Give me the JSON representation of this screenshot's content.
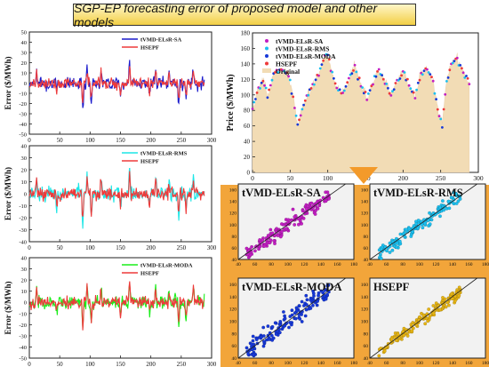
{
  "title": "SGP-EP forecasting error of proposed model and other models",
  "colors": {
    "sa": "#1a1acc",
    "rms": "#1de6e6",
    "moda": "#1aee1a",
    "hsepf": "#ee3a3a",
    "original": "#f2dcb5",
    "sc_sa": "#c21ec2",
    "sc_rms": "#1cc0f0",
    "sc_moda": "#1638d8",
    "sc_hsepf": "#e6b414"
  },
  "error_panels": [
    {
      "ylabel": "Error ($/MWh)",
      "ylim": [
        -50,
        50
      ],
      "yticks": [
        -50,
        -40,
        -30,
        -20,
        -10,
        0,
        10,
        20,
        30,
        40,
        50
      ],
      "xlim": [
        0,
        300
      ],
      "xticks": [
        0,
        50,
        100,
        150,
        200,
        250,
        300
      ],
      "legend": [
        {
          "label": "tVMD-ELsR-SA",
          "color": "#1a1acc"
        },
        {
          "label": "HSEPF",
          "color": "#ee3a3a"
        }
      ]
    },
    {
      "ylabel": "Error ($/MWh)",
      "ylim": [
        -40,
        40
      ],
      "yticks": [
        -40,
        -30,
        -20,
        -10,
        0,
        10,
        20,
        30,
        40
      ],
      "xlim": [
        0,
        300
      ],
      "xticks": [
        0,
        50,
        100,
        150,
        200,
        250,
        300
      ],
      "legend": [
        {
          "label": "tVMD-ELsR-RMS",
          "color": "#1de6e6"
        },
        {
          "label": "HSEPF",
          "color": "#ee3a3a"
        }
      ]
    },
    {
      "ylabel": "Error ($/MWh)",
      "ylim": [
        -50,
        40
      ],
      "yticks": [
        -50,
        -40,
        -30,
        -20,
        -10,
        0,
        10,
        20,
        30,
        40
      ],
      "xlim": [
        0,
        300
      ],
      "xticks": [
        0,
        50,
        100,
        150,
        200,
        250,
        300
      ],
      "legend": [
        {
          "label": "tVMD-ELsR-MODA",
          "color": "#1aee1a"
        },
        {
          "label": "HSEPF",
          "color": "#ee3a3a"
        }
      ]
    }
  ],
  "price_panel": {
    "ylabel": "Price ($/MWh)",
    "ylim": [
      0,
      180
    ],
    "yticks": [
      0,
      20,
      40,
      60,
      80,
      100,
      120,
      140,
      160,
      180
    ],
    "xlim": [
      0,
      300
    ],
    "xticks": [
      0,
      50,
      100,
      150,
      200,
      250,
      300
    ],
    "legend": [
      "tVMD-ELsR-SA",
      "tVMD-ELsR-RMS",
      "tVMD-ELsR-MODA",
      "HSEPF",
      "Original"
    ]
  },
  "scatter_panels": [
    {
      "label": "tVMD-ELsR-SA",
      "xticks": [
        40,
        60,
        80,
        100,
        120,
        140,
        160,
        180
      ],
      "yticks": [
        40,
        60,
        80,
        100,
        120,
        140,
        160
      ]
    },
    {
      "label": "tVMD-ELsR-RMS",
      "xticks": [
        40,
        60,
        80,
        100,
        120,
        140,
        160,
        180
      ],
      "yticks": [
        40,
        60,
        80,
        100,
        120,
        140,
        160
      ]
    },
    {
      "label": "tVMD-ELsR-MODA",
      "xticks": [
        40,
        60,
        80,
        100,
        120,
        140,
        160,
        180
      ],
      "yticks": [
        40,
        60,
        80,
        100,
        120,
        140,
        160
      ]
    },
    {
      "label": "HSEPF",
      "xticks": [
        40,
        60,
        80,
        100,
        120,
        140,
        160,
        180
      ],
      "yticks": [
        40,
        60,
        80,
        100,
        120,
        140,
        160
      ]
    }
  ],
  "chart_data": {
    "type": "line",
    "title": "SGP-EP forecasting error of proposed model and other models",
    "price_series_knots": {
      "x": [
        0,
        8,
        14,
        20,
        28,
        38,
        48,
        55,
        60,
        65,
        72,
        80,
        88,
        96,
        100,
        106,
        112,
        120,
        128,
        136,
        144,
        152,
        160,
        168,
        176,
        184,
        192,
        200,
        208,
        216,
        224,
        232,
        240,
        246,
        252,
        258,
        264,
        272,
        280,
        288
      ],
      "y": [
        80,
        110,
        118,
        98,
        128,
        132,
        125,
        92,
        60,
        78,
        100,
        110,
        128,
        152,
        150,
        128,
        108,
        102,
        118,
        140,
        112,
        95,
        118,
        132,
        115,
        100,
        118,
        130,
        112,
        98,
        128,
        132,
        120,
        80,
        65,
        118,
        140,
        148,
        128,
        115
      ]
    },
    "error_spikes": {
      "x": [
        12,
        45,
        88,
        95,
        102,
        118,
        150,
        165,
        198,
        208,
        230,
        246,
        258,
        270
      ],
      "y": [
        12,
        -10,
        -25,
        15,
        -18,
        15,
        -12,
        20,
        -10,
        13,
        10,
        -20,
        -15,
        12
      ]
    },
    "scatter_range": [
      40,
      180
    ]
  }
}
